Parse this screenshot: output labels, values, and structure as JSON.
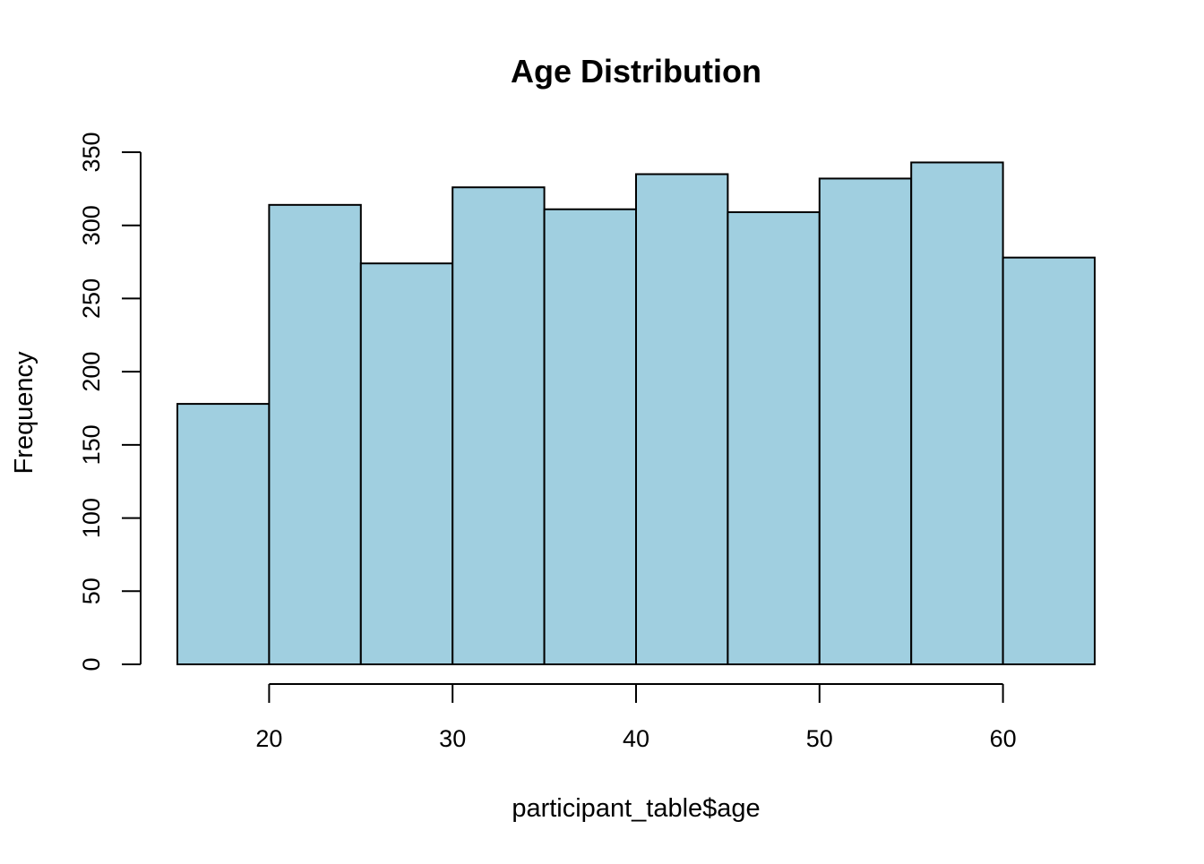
{
  "chart_data": {
    "type": "bar",
    "title": "Age Distribution",
    "xlabel": "participant_table$age",
    "ylabel": "Frequency",
    "bins": [
      {
        "x0": 15,
        "x1": 20,
        "count": 178
      },
      {
        "x0": 20,
        "x1": 25,
        "count": 314
      },
      {
        "x0": 25,
        "x1": 30,
        "count": 274
      },
      {
        "x0": 30,
        "x1": 35,
        "count": 326
      },
      {
        "x0": 35,
        "x1": 40,
        "count": 311
      },
      {
        "x0": 40,
        "x1": 45,
        "count": 335
      },
      {
        "x0": 45,
        "x1": 50,
        "count": 309
      },
      {
        "x0": 50,
        "x1": 55,
        "count": 332
      },
      {
        "x0": 55,
        "x1": 60,
        "count": 343
      },
      {
        "x0": 60,
        "x1": 65,
        "count": 278
      }
    ],
    "xticks": [
      20,
      30,
      40,
      50,
      60
    ],
    "yticks": [
      0,
      50,
      100,
      150,
      200,
      250,
      300,
      350
    ],
    "xlim": [
      15,
      65
    ],
    "ylim": [
      0,
      350
    ],
    "grid": false,
    "legend": "none",
    "bar_color": "#A0CFE0",
    "edge_color": "#000000"
  }
}
